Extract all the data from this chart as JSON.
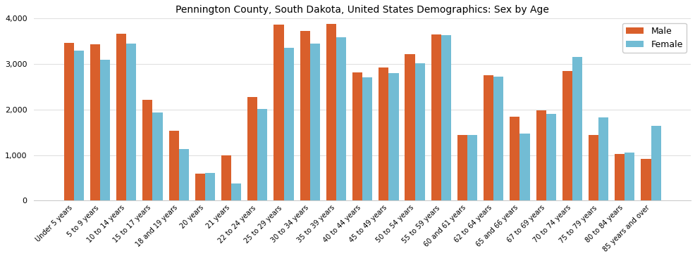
{
  "title": "Pennington County, South Dakota, United States Demographics: Sex by Age",
  "categories": [
    "Under 5 years",
    "5 to 9 years",
    "10 to 14 years",
    "15 to 17 years",
    "18 and 19 years",
    "20 years",
    "21 years",
    "22 to 24 years",
    "25 to 29 years",
    "30 to 34 years",
    "35 to 39 years",
    "40 to 44 years",
    "45 to 49 years",
    "50 to 54 years",
    "55 to 59 years",
    "60 and 61 years",
    "62 to 64 years",
    "65 and 66 years",
    "67 to 69 years",
    "70 to 74 years",
    "75 to 79 years",
    "80 to 84 years",
    "85 years and over"
  ],
  "male": [
    3470,
    3440,
    3660,
    2220,
    1540,
    600,
    990,
    2270,
    3860,
    3720,
    3880,
    2820,
    2930,
    3210,
    3650,
    1440,
    2760,
    1850,
    1980,
    2840,
    1450,
    1020,
    920
  ],
  "female": [
    3300,
    3100,
    3450,
    1930,
    1140,
    610,
    370,
    2020,
    3360,
    3450,
    3590,
    2710,
    2800,
    3020,
    3640,
    1450,
    2720,
    1480,
    1900,
    3160,
    1830,
    1060,
    1640
  ],
  "male_color": "#d95f2b",
  "female_color": "#72bcd4",
  "bar_width": 0.38,
  "ylim": [
    0,
    4000
  ],
  "yticks": [
    0,
    1000,
    2000,
    3000,
    4000
  ],
  "legend_labels": [
    "Male",
    "Female"
  ],
  "figsize": [
    9.87,
    3.67
  ],
  "dpi": 100,
  "title_fontsize": 10,
  "tick_fontsize": 7,
  "ytick_fontsize": 8
}
